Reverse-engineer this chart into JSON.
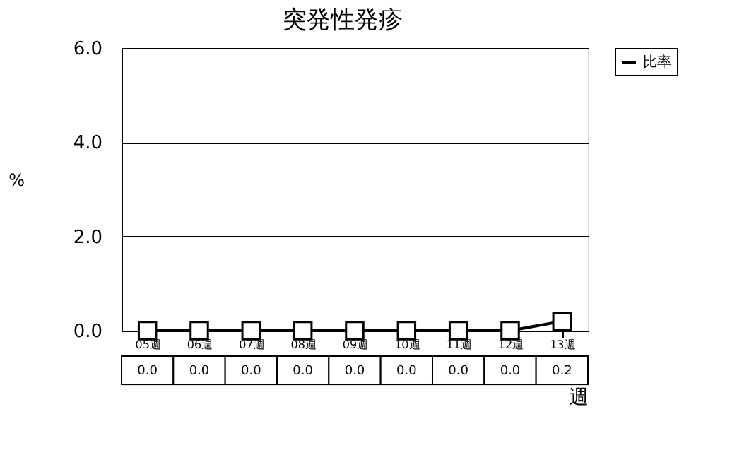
{
  "chart_data": {
    "type": "line",
    "title": "突発性発疹",
    "xlabel": "週",
    "ylabel": "%",
    "categories": [
      "05週",
      "06週",
      "07週",
      "08週",
      "09週",
      "10週",
      "11週",
      "12週",
      "13週"
    ],
    "series": [
      {
        "name": "比率",
        "color": "#000000",
        "values": [
          0.0,
          0.0,
          0.0,
          0.0,
          0.0,
          0.0,
          0.0,
          0.0,
          0.2
        ],
        "value_labels": [
          "0.0",
          "0.0",
          "0.0",
          "0.0",
          "0.0",
          "0.0",
          "0.0",
          "0.0",
          "0.2"
        ]
      }
    ],
    "ylim": [
      0,
      6
    ],
    "yticks": [
      {
        "value": 0,
        "label": "0.0"
      },
      {
        "value": 2,
        "label": "2.0"
      },
      {
        "value": 4,
        "label": "4.0"
      },
      {
        "value": 6,
        "label": "6.0"
      }
    ],
    "grid": "y",
    "legend": "top right",
    "marker": "square",
    "line_style": "solid"
  }
}
